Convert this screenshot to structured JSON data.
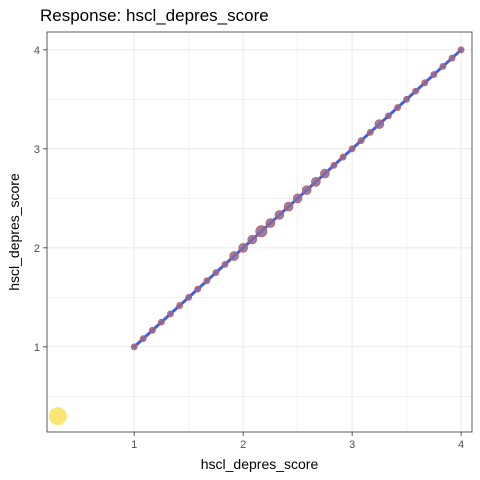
{
  "chart_data": {
    "type": "scatter",
    "title": "Response: hscl_depres_score",
    "xlabel": "hscl_depres_score",
    "ylabel": "hscl_depres_score",
    "xlim": [
      0.2,
      4.1
    ],
    "ylim": [
      0.14,
      4.18
    ],
    "x_ticks": [
      "1",
      "2",
      "3",
      "4"
    ],
    "y_ticks": [
      "1",
      "2",
      "3",
      "4"
    ],
    "grid": true,
    "points": [
      {
        "x": 1.0,
        "y": 1.0,
        "size": 1
      },
      {
        "x": 1.083,
        "y": 1.083,
        "size": 1
      },
      {
        "x": 1.167,
        "y": 1.167,
        "size": 1
      },
      {
        "x": 1.25,
        "y": 1.25,
        "size": 1
      },
      {
        "x": 1.333,
        "y": 1.333,
        "size": 1
      },
      {
        "x": 1.417,
        "y": 1.417,
        "size": 1
      },
      {
        "x": 1.5,
        "y": 1.5,
        "size": 1
      },
      {
        "x": 1.583,
        "y": 1.583,
        "size": 1
      },
      {
        "x": 1.667,
        "y": 1.667,
        "size": 1
      },
      {
        "x": 1.75,
        "y": 1.75,
        "size": 1
      },
      {
        "x": 1.833,
        "y": 1.833,
        "size": 1
      },
      {
        "x": 1.917,
        "y": 1.917,
        "size": 2
      },
      {
        "x": 2.0,
        "y": 2.0,
        "size": 2
      },
      {
        "x": 2.083,
        "y": 2.083,
        "size": 2
      },
      {
        "x": 2.167,
        "y": 2.167,
        "size": 3
      },
      {
        "x": 2.25,
        "y": 2.25,
        "size": 2
      },
      {
        "x": 2.333,
        "y": 2.333,
        "size": 2
      },
      {
        "x": 2.417,
        "y": 2.417,
        "size": 2
      },
      {
        "x": 2.5,
        "y": 2.5,
        "size": 2
      },
      {
        "x": 2.583,
        "y": 2.583,
        "size": 2
      },
      {
        "x": 2.667,
        "y": 2.667,
        "size": 2
      },
      {
        "x": 2.75,
        "y": 2.75,
        "size": 2
      },
      {
        "x": 2.833,
        "y": 2.833,
        "size": 1
      },
      {
        "x": 2.917,
        "y": 2.917,
        "size": 1
      },
      {
        "x": 3.0,
        "y": 3.0,
        "size": 1
      },
      {
        "x": 3.083,
        "y": 3.083,
        "size": 1
      },
      {
        "x": 3.167,
        "y": 3.167,
        "size": 1
      },
      {
        "x": 3.25,
        "y": 3.25,
        "size": 2
      },
      {
        "x": 3.333,
        "y": 3.333,
        "size": 1
      },
      {
        "x": 3.417,
        "y": 3.417,
        "size": 1
      },
      {
        "x": 3.5,
        "y": 3.5,
        "size": 1
      },
      {
        "x": 3.583,
        "y": 3.583,
        "size": 1
      },
      {
        "x": 3.667,
        "y": 3.667,
        "size": 1
      },
      {
        "x": 3.75,
        "y": 3.75,
        "size": 1
      },
      {
        "x": 3.833,
        "y": 3.833,
        "size": 1
      },
      {
        "x": 3.917,
        "y": 3.917,
        "size": 1
      },
      {
        "x": 4.0,
        "y": 4.0,
        "size": 1
      }
    ],
    "fit_line": {
      "x": [
        1.0,
        4.0
      ],
      "y": [
        1.0,
        4.0
      ]
    },
    "highlight_point": {
      "x": 0.3,
      "y": 0.3
    },
    "colors": {
      "point_fill": "#8a6a9a",
      "point_stroke": "#c0605a",
      "line": "#3f5fe8",
      "highlight": "#f7e35a",
      "grid": "#ebebeb",
      "panel_border": "#333333"
    }
  }
}
